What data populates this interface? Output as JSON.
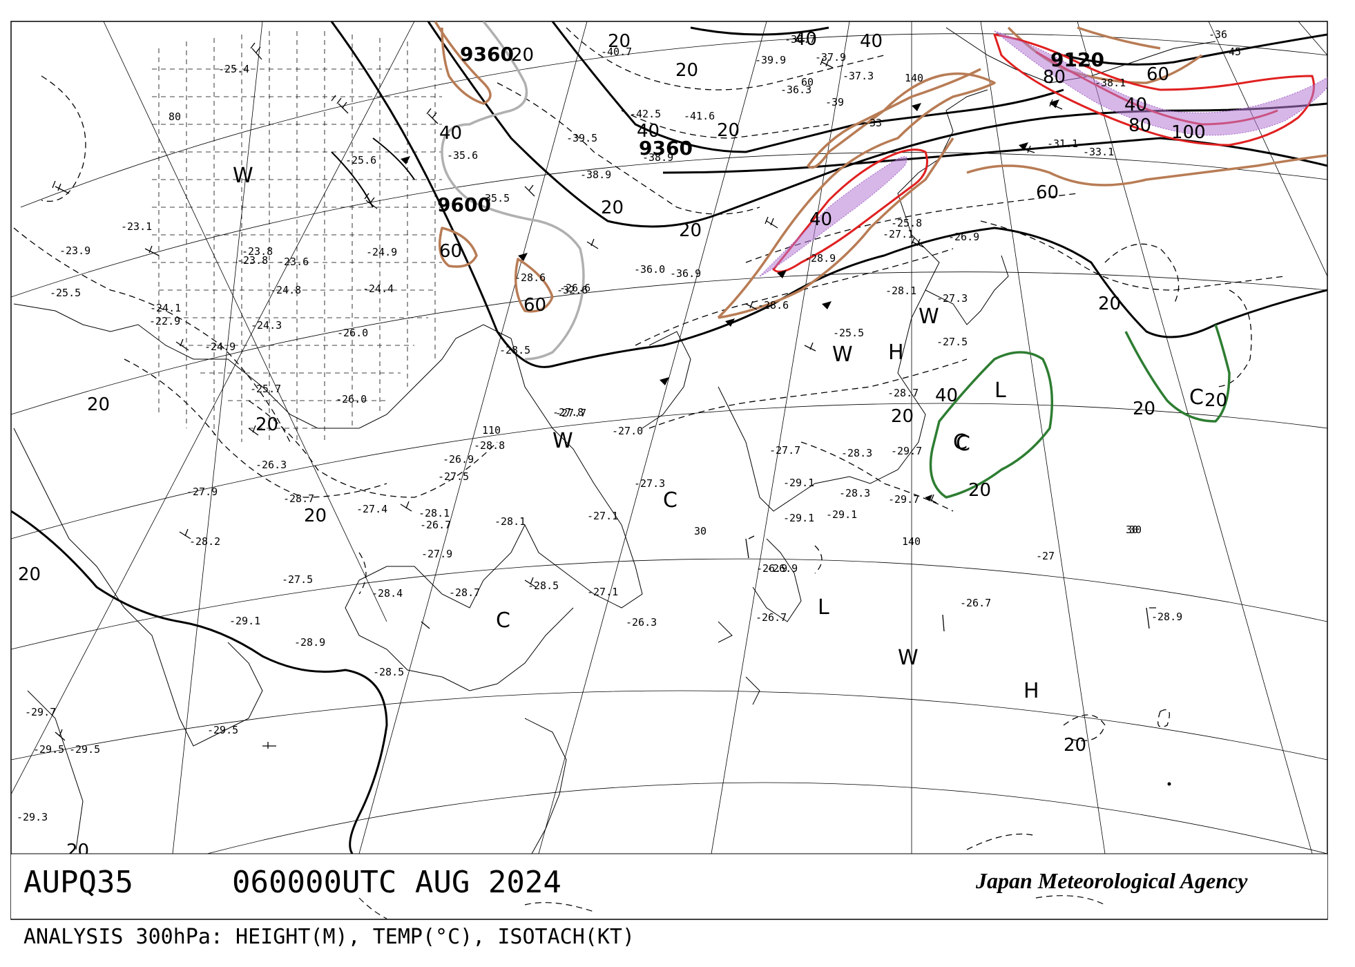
{
  "header": {
    "chart_id": "AUPQ35",
    "valid_time": "060000UTC AUG 2024",
    "agency": "Japan Meteorological Agency",
    "description": "ANALYSIS 300hPa: HEIGHT(M), TEMP(°C), ISOTACH(KT)"
  },
  "grid_labels": [
    "30",
    "30",
    "30",
    "80",
    "110",
    "140",
    "140",
    "60"
  ],
  "height_labels": [
    "9360",
    "9360",
    "9600",
    "9120"
  ],
  "isotach_labels": [
    "20",
    "20",
    "20",
    "20",
    "20",
    "20",
    "20",
    "20",
    "20",
    "20",
    "20",
    "20",
    "20",
    "20",
    "20",
    "20",
    "20",
    "40",
    "40",
    "40",
    "40",
    "40",
    "40",
    "40",
    "60",
    "60",
    "60",
    "60",
    "80",
    "80",
    "100"
  ],
  "pressure_centers": [
    "H",
    "H",
    "L",
    "L"
  ],
  "air_masses": [
    "W",
    "W",
    "W",
    "W",
    "W",
    "C",
    "C",
    "C",
    "C",
    "C"
  ],
  "temperatures": [
    "-23.1",
    "-23.9",
    "-25.5",
    "-24.1",
    "-22.9",
    "-24.3",
    "-24.9",
    "-23.6",
    "-23.8",
    "-24.8",
    "-26.0",
    "-24.4",
    "-24.9",
    "-25.6",
    "-25.4",
    "-25.7",
    "-26.0",
    "-26.3",
    "-27.9",
    "-28.2",
    "-28.7",
    "-27.4",
    "-28.1",
    "-26.7",
    "-27.9",
    "-27.5",
    "-26.9",
    "-28.8",
    "-27.7",
    "-27.8",
    "-27.0",
    "-28.6",
    "-28.5",
    "-26.6",
    "-32.6",
    "-35.5",
    "-35.6",
    "-36.0",
    "-36.9",
    "-39.5",
    "-38.9",
    "-38.9",
    "-40.7",
    "-41.6",
    "-42.5",
    "-39.9",
    "-37.9",
    "-36.7",
    "-36.3",
    "-37.3",
    "-38.1",
    "-31.1",
    "-33.1",
    "-27.1",
    "-25.8",
    "-26.9",
    "-28.9",
    "-28.6",
    "-28.1",
    "-27.3",
    "-27.5",
    "-25.5",
    "-28.7",
    "-29.7",
    "-29.7",
    "-28.3",
    "-28.3",
    "-29.1",
    "-29.1",
    "-29.1",
    "-27.7",
    "-26.9",
    "-27.3",
    "-27.1",
    "-28.1",
    "-28.7",
    "-28.5",
    "-27.1",
    "-26.3",
    "-26.9",
    "-26.7",
    "-26.7",
    "-28.9",
    "-29.1",
    "-28.9",
    "-28.5",
    "-29.5",
    "-29.7",
    "-29.5",
    "-29.5",
    "-29.3",
    "-28.4",
    "-27.5",
    "-23.8"
  ],
  "dew_depressions": [
    "-27",
    "-33",
    "-39",
    "-45",
    "-36"
  ]
}
